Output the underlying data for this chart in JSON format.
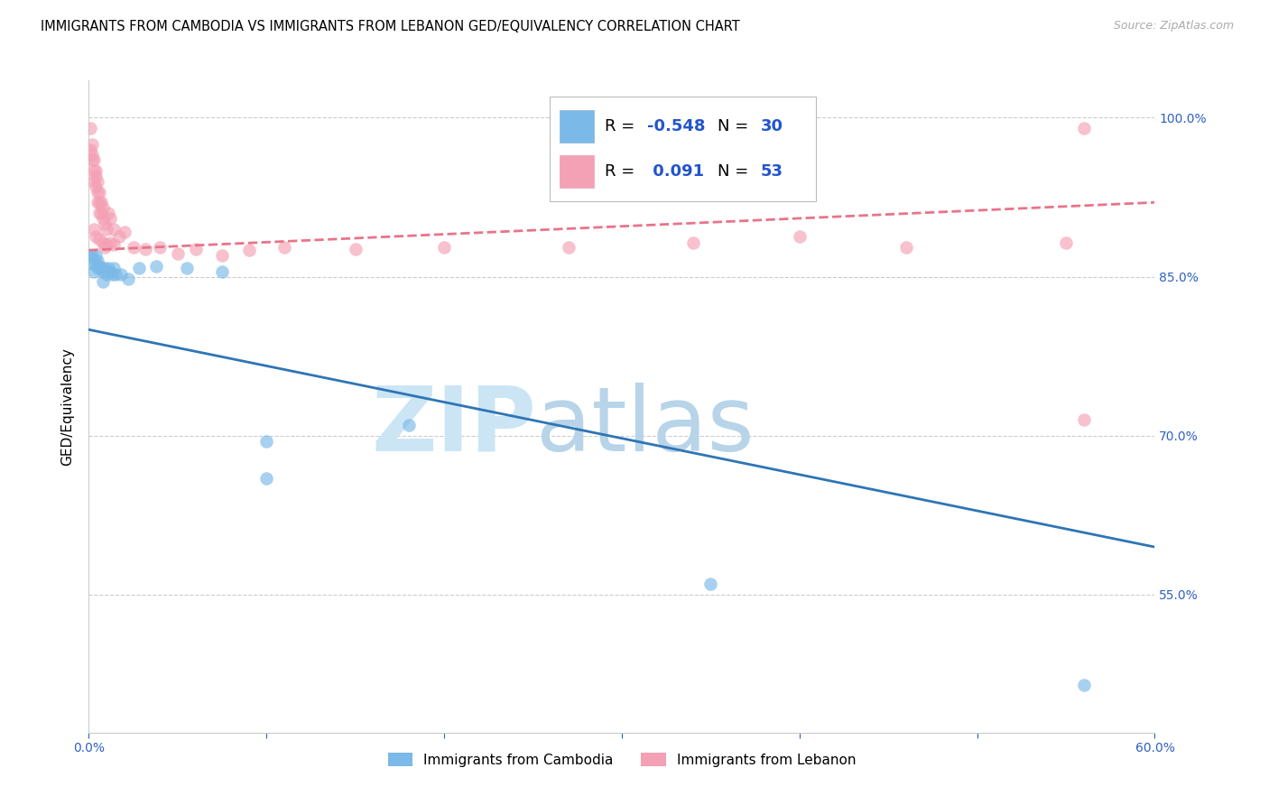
{
  "title": "IMMIGRANTS FROM CAMBODIA VS IMMIGRANTS FROM LEBANON GED/EQUIVALENCY CORRELATION CHART",
  "source_text": "Source: ZipAtlas.com",
  "ylabel": "GED/Equivalency",
  "xlim": [
    0.0,
    0.6
  ],
  "ylim": [
    0.42,
    1.035
  ],
  "xtick_positions": [
    0.0,
    0.1,
    0.2,
    0.3,
    0.4,
    0.5,
    0.6
  ],
  "xticklabels": [
    "0.0%",
    "",
    "",
    "",
    "",
    "",
    "60.0%"
  ],
  "ytick_positions": [
    0.55,
    0.7,
    0.85,
    1.0
  ],
  "yticklabels": [
    "55.0%",
    "70.0%",
    "85.0%",
    "100.0%"
  ],
  "r_cambodia": "-0.548",
  "n_cambodia": "30",
  "r_lebanon": "0.091",
  "n_lebanon": "53",
  "color_cambodia": "#7ab9e8",
  "color_lebanon": "#f4a0b5",
  "line_color_cambodia": "#2e75b6",
  "line_color_lebanon": "#e8748a",
  "watermark_zip": "ZIP",
  "watermark_atlas": "atlas",
  "bg_color": "#ffffff",
  "grid_color": "#cccccc",
  "tick_color": "#3060c0",
  "legend_val_color": "#2255cc",
  "cambodia_x": [
    0.001,
    0.002,
    0.002,
    0.003,
    0.004,
    0.004,
    0.005,
    0.005,
    0.006,
    0.007,
    0.008,
    0.008,
    0.009,
    0.01,
    0.011,
    0.012,
    0.013,
    0.014,
    0.015,
    0.018,
    0.022,
    0.028,
    0.038,
    0.055,
    0.075,
    0.1,
    0.1,
    0.18,
    0.35,
    0.56
  ],
  "cambodia_y": [
    0.87,
    0.862,
    0.87,
    0.855,
    0.87,
    0.862,
    0.865,
    0.858,
    0.86,
    0.858,
    0.855,
    0.845,
    0.858,
    0.852,
    0.858,
    0.855,
    0.852,
    0.858,
    0.852,
    0.852,
    0.848,
    0.858,
    0.86,
    0.858,
    0.855,
    0.66,
    0.695,
    0.71,
    0.56,
    0.465
  ],
  "lebanon_x": [
    0.001,
    0.001,
    0.002,
    0.002,
    0.002,
    0.003,
    0.003,
    0.003,
    0.004,
    0.004,
    0.004,
    0.005,
    0.005,
    0.005,
    0.006,
    0.006,
    0.006,
    0.007,
    0.007,
    0.008,
    0.008,
    0.009,
    0.01,
    0.011,
    0.012,
    0.014,
    0.017,
    0.02,
    0.025,
    0.032,
    0.04,
    0.05,
    0.06,
    0.075,
    0.09,
    0.11,
    0.15,
    0.2,
    0.27,
    0.34,
    0.4,
    0.46,
    0.55,
    0.003,
    0.004,
    0.006,
    0.008,
    0.009,
    0.01,
    0.012,
    0.014,
    0.56,
    0.56
  ],
  "lebanon_y": [
    0.99,
    0.97,
    0.975,
    0.965,
    0.96,
    0.96,
    0.95,
    0.94,
    0.95,
    0.945,
    0.935,
    0.94,
    0.93,
    0.92,
    0.93,
    0.92,
    0.91,
    0.92,
    0.91,
    0.915,
    0.905,
    0.9,
    0.895,
    0.91,
    0.905,
    0.895,
    0.888,
    0.892,
    0.878,
    0.876,
    0.878,
    0.872,
    0.876,
    0.87,
    0.875,
    0.878,
    0.876,
    0.878,
    0.878,
    0.882,
    0.888,
    0.878,
    0.882,
    0.895,
    0.888,
    0.885,
    0.882,
    0.878,
    0.88,
    0.882,
    0.88,
    0.715,
    0.99
  ],
  "cam_line_x0": 0.0,
  "cam_line_y0": 0.8,
  "cam_line_x1": 0.6,
  "cam_line_y1": 0.595,
  "leb_line_x0": 0.0,
  "leb_line_y0": 0.875,
  "leb_line_x1": 0.6,
  "leb_line_y1": 0.92
}
